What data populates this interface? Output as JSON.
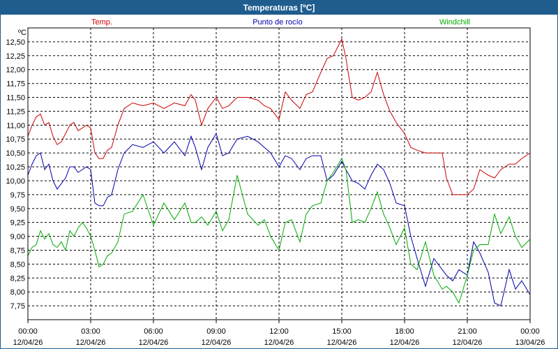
{
  "window": {
    "title": "Temperaturas [ºC]"
  },
  "chart_data": {
    "type": "line",
    "title": "Temperaturas [ºC]",
    "unit_label": "ºC",
    "ylim": [
      7.5,
      12.75
    ],
    "xlim": [
      0,
      24
    ],
    "grid": true,
    "legend_position": "top",
    "y_ticks": [
      "7,75",
      "8,00",
      "8,25",
      "8,50",
      "8,75",
      "9,00",
      "9,25",
      "9,50",
      "9,75",
      "10,00",
      "10,25",
      "10,50",
      "10,75",
      "11,00",
      "11,25",
      "11,50",
      "11,75",
      "12,00",
      "12,25",
      "12,50"
    ],
    "x_ticks": [
      {
        "time": "00:00",
        "date": "12/04/26"
      },
      {
        "time": "03:00",
        "date": "12/04/26"
      },
      {
        "time": "06:00",
        "date": "12/04/26"
      },
      {
        "time": "09:00",
        "date": "12/04/26"
      },
      {
        "time": "12:00",
        "date": "12/04/26"
      },
      {
        "time": "15:00",
        "date": "12/04/26"
      },
      {
        "time": "18:00",
        "date": "12/04/26"
      },
      {
        "time": "21:00",
        "date": "12/04/26"
      },
      {
        "time": "00:00",
        "date": "13/04/26"
      }
    ],
    "series": [
      {
        "name": "Temp.",
        "color": "#cc0000",
        "x": [
          0,
          0.2,
          0.4,
          0.6,
          0.8,
          1.0,
          1.2,
          1.4,
          1.6,
          1.8,
          2.0,
          2.2,
          2.4,
          2.6,
          2.8,
          3.0,
          3.2,
          3.4,
          3.6,
          3.8,
          4.0,
          4.3,
          4.6,
          5.0,
          5.5,
          6.0,
          6.5,
          7.0,
          7.5,
          7.8,
          8.0,
          8.3,
          8.6,
          9.0,
          9.3,
          9.6,
          10.0,
          10.5,
          11.0,
          11.3,
          11.6,
          12.0,
          12.3,
          12.6,
          13.0,
          13.3,
          13.6,
          14.0,
          14.3,
          14.6,
          15.0,
          15.2,
          15.5,
          15.8,
          16.1,
          16.4,
          16.7,
          17.0,
          17.3,
          17.6,
          18.0,
          18.3,
          18.6,
          19.0,
          19.4,
          19.8,
          20.0,
          20.3,
          20.6,
          21.0,
          21.3,
          21.6,
          22.0,
          22.3,
          22.6,
          23.0,
          23.3,
          23.6,
          24.0
        ],
        "y": [
          10.8,
          11.0,
          11.15,
          11.2,
          11.0,
          11.05,
          10.8,
          10.65,
          10.7,
          10.85,
          11.0,
          11.05,
          10.9,
          10.95,
          11.0,
          10.95,
          10.5,
          10.4,
          10.4,
          10.55,
          10.6,
          11.0,
          11.3,
          11.4,
          11.35,
          11.4,
          11.3,
          11.4,
          11.35,
          11.55,
          11.45,
          11.0,
          11.3,
          11.5,
          11.3,
          11.35,
          11.5,
          11.5,
          11.45,
          11.35,
          11.3,
          11.1,
          11.6,
          11.45,
          11.3,
          11.55,
          11.6,
          11.95,
          12.2,
          12.25,
          12.55,
          12.2,
          11.5,
          11.45,
          11.5,
          11.6,
          11.95,
          11.55,
          11.25,
          11.05,
          10.85,
          10.6,
          10.55,
          10.5,
          10.5,
          10.5,
          10.05,
          9.75,
          9.75,
          9.75,
          9.85,
          10.2,
          10.1,
          10.05,
          10.2,
          10.3,
          10.3,
          10.4,
          10.5
        ]
      },
      {
        "name": "Punto de rocío",
        "color": "#0000aa",
        "x": [
          0,
          0.2,
          0.4,
          0.6,
          0.8,
          1.0,
          1.2,
          1.4,
          1.6,
          1.8,
          2.0,
          2.2,
          2.4,
          2.6,
          2.8,
          3.0,
          3.2,
          3.4,
          3.6,
          3.8,
          4.0,
          4.3,
          4.6,
          5.0,
          5.5,
          6.0,
          6.5,
          7.0,
          7.5,
          7.8,
          8.0,
          8.3,
          8.6,
          9.0,
          9.3,
          9.6,
          10.0,
          10.5,
          11.0,
          11.3,
          11.6,
          12.0,
          12.3,
          12.6,
          13.0,
          13.3,
          13.6,
          14.0,
          14.3,
          14.6,
          15.0,
          15.2,
          15.5,
          15.8,
          16.1,
          16.4,
          16.7,
          17.0,
          17.3,
          17.6,
          18.0,
          18.3,
          18.6,
          19.0,
          19.4,
          19.8,
          20.0,
          20.3,
          20.6,
          21.0,
          21.3,
          21.6,
          22.0,
          22.3,
          22.6,
          23.0,
          23.3,
          23.6,
          24.0
        ],
        "y": [
          10.1,
          10.3,
          10.45,
          10.5,
          10.2,
          10.3,
          10.0,
          9.85,
          9.95,
          10.05,
          10.25,
          10.25,
          10.15,
          10.2,
          10.25,
          10.2,
          9.6,
          9.55,
          9.55,
          9.7,
          9.75,
          10.2,
          10.5,
          10.65,
          10.6,
          10.7,
          10.5,
          10.7,
          10.45,
          10.8,
          10.6,
          10.2,
          10.6,
          10.85,
          10.45,
          10.5,
          10.75,
          10.8,
          10.7,
          10.6,
          10.5,
          10.25,
          10.45,
          10.4,
          10.2,
          10.4,
          10.45,
          10.45,
          10.0,
          10.1,
          10.35,
          10.2,
          10.0,
          9.95,
          9.85,
          10.1,
          10.3,
          10.2,
          9.95,
          9.6,
          9.55,
          9.0,
          8.6,
          8.1,
          8.6,
          8.4,
          8.3,
          8.2,
          8.4,
          8.3,
          8.9,
          8.7,
          8.35,
          7.8,
          7.75,
          8.4,
          8.05,
          8.2,
          7.95
        ]
      },
      {
        "name": "Windchill",
        "color": "#00aa00",
        "x": [
          0,
          0.2,
          0.4,
          0.6,
          0.8,
          1.0,
          1.2,
          1.4,
          1.6,
          1.8,
          2.0,
          2.2,
          2.4,
          2.6,
          2.8,
          3.0,
          3.2,
          3.4,
          3.6,
          3.8,
          4.0,
          4.3,
          4.6,
          5.0,
          5.5,
          6.0,
          6.5,
          7.0,
          7.5,
          7.8,
          8.0,
          8.3,
          8.6,
          9.0,
          9.3,
          9.6,
          10.0,
          10.5,
          11.0,
          11.3,
          11.6,
          12.0,
          12.3,
          12.6,
          13.0,
          13.3,
          13.6,
          14.0,
          14.3,
          14.6,
          15.0,
          15.2,
          15.5,
          15.8,
          16.1,
          16.4,
          16.7,
          17.0,
          17.3,
          17.6,
          18.0,
          18.3,
          18.6,
          19.0,
          19.4,
          19.8,
          20.0,
          20.3,
          20.6,
          21.0,
          21.3,
          21.6,
          22.0,
          22.3,
          22.6,
          23.0,
          23.3,
          23.6,
          24.0
        ],
        "y": [
          8.65,
          8.8,
          8.85,
          9.1,
          8.95,
          9.05,
          8.85,
          8.8,
          8.9,
          8.75,
          9.1,
          9.0,
          9.15,
          9.25,
          9.15,
          9.0,
          8.75,
          8.45,
          8.5,
          8.65,
          8.7,
          8.9,
          9.4,
          9.45,
          9.75,
          9.2,
          9.6,
          9.3,
          9.6,
          9.25,
          9.25,
          9.35,
          9.2,
          9.45,
          9.1,
          9.3,
          10.1,
          9.4,
          9.2,
          9.3,
          9.0,
          8.75,
          9.25,
          9.3,
          8.9,
          9.4,
          9.55,
          9.6,
          10.0,
          10.15,
          10.4,
          10.2,
          9.25,
          9.3,
          9.25,
          9.5,
          9.8,
          9.4,
          9.15,
          8.85,
          9.15,
          8.5,
          8.4,
          8.9,
          8.3,
          8.05,
          8.1,
          8.0,
          7.8,
          8.3,
          8.75,
          8.85,
          8.85,
          9.4,
          9.05,
          9.35,
          9.0,
          8.8,
          8.95
        ]
      }
    ]
  }
}
